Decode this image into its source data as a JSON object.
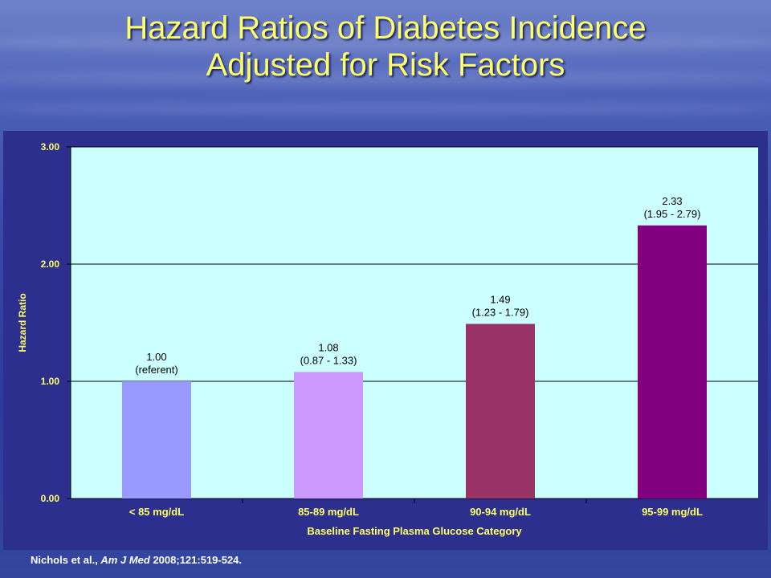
{
  "title_line1": "Hazard Ratios of Diabetes Incidence",
  "title_line2": "Adjusted for Risk Factors",
  "citation": {
    "authors": "Nichols et al., ",
    "journal": "Am J Med",
    "details": " 2008;121:519-524."
  },
  "colors": {
    "title": "#ffff66",
    "plot_background": "#ccffff",
    "panel_background": "#2c2f8e",
    "axis_text": "#ffff66"
  },
  "chart_data": {
    "type": "bar",
    "title": "",
    "xlabel": "Baseline Fasting Plasma Glucose Category",
    "ylabel": "Hazard Ratio",
    "ylim": [
      0,
      3
    ],
    "yticks": [
      "0.00",
      "1.00",
      "2.00",
      "3.00"
    ],
    "grid": true,
    "categories": [
      "< 85 mg/dL",
      "85-89 mg/dL",
      "90-94 mg/dL",
      "95-99 mg/dL"
    ],
    "values": [
      1.0,
      1.08,
      1.49,
      2.33
    ],
    "bar_colors": [
      "#9999ff",
      "#cc99ff",
      "#993366",
      "#800080"
    ],
    "labels": [
      [
        "1.00",
        "(referent)"
      ],
      [
        "1.08",
        "(0.87 - 1.33)"
      ],
      [
        "1.49",
        "(1.23 - 1.79)"
      ],
      [
        "2.33",
        "(1.95 - 2.79)"
      ]
    ]
  }
}
